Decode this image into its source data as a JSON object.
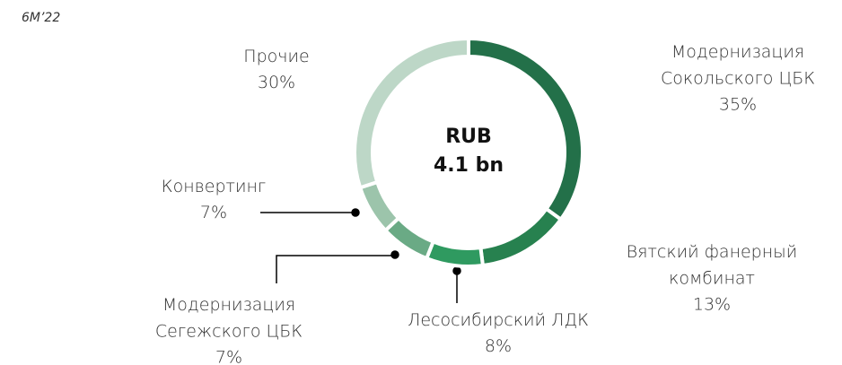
{
  "chart_data": {
    "type": "donut",
    "subtitle": "6M’22",
    "center_label": [
      "RUB",
      "4.1 bn"
    ],
    "categories": [
      "Модернизация Сокольского ЦБК",
      "Вятский фанерный комбинат",
      "Лесосибирский ЛДК",
      "Модернизация Сегежского ЦБК",
      "Конвертинг",
      "Прочие"
    ],
    "values": [
      35,
      13,
      8,
      7,
      7,
      30
    ],
    "value_labels": [
      "35%",
      "13%",
      "8%",
      "7%",
      "7%",
      "30%"
    ],
    "colors": [
      "#237049",
      "#27814f",
      "#2f9a60",
      "#6aaa85",
      "#9cc4ab",
      "#bdd7c7"
    ]
  }
}
